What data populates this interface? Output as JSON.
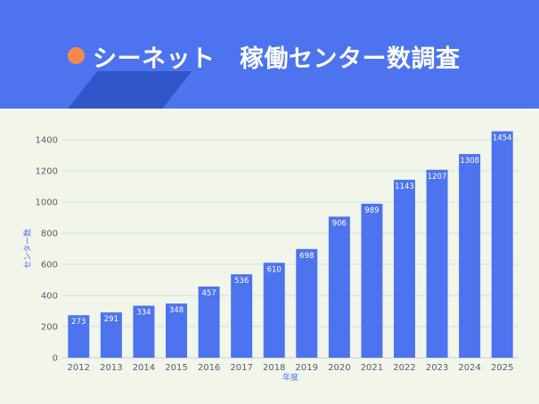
{
  "header": {
    "title": "シーネット　稼働センター数調査",
    "bullet_color": "#f5894c",
    "background_color": "#4d74ee"
  },
  "chart_data": {
    "type": "bar",
    "categories": [
      "2012",
      "2013",
      "2014",
      "2015",
      "2016",
      "2017",
      "2018",
      "2019",
      "2020",
      "2021",
      "2022",
      "2023",
      "2024",
      "2025"
    ],
    "values": [
      273,
      291,
      334,
      348,
      457,
      536,
      610,
      698,
      906,
      989,
      1143,
      1207,
      1308,
      1454
    ],
    "xlabel": "年度",
    "ylabel": "センター数",
    "ylim": [
      0,
      1400
    ],
    "yticks": [
      0,
      200,
      400,
      600,
      800,
      1000,
      1200,
      1400
    ],
    "bar_color": "#4d74ee",
    "grid": true
  }
}
